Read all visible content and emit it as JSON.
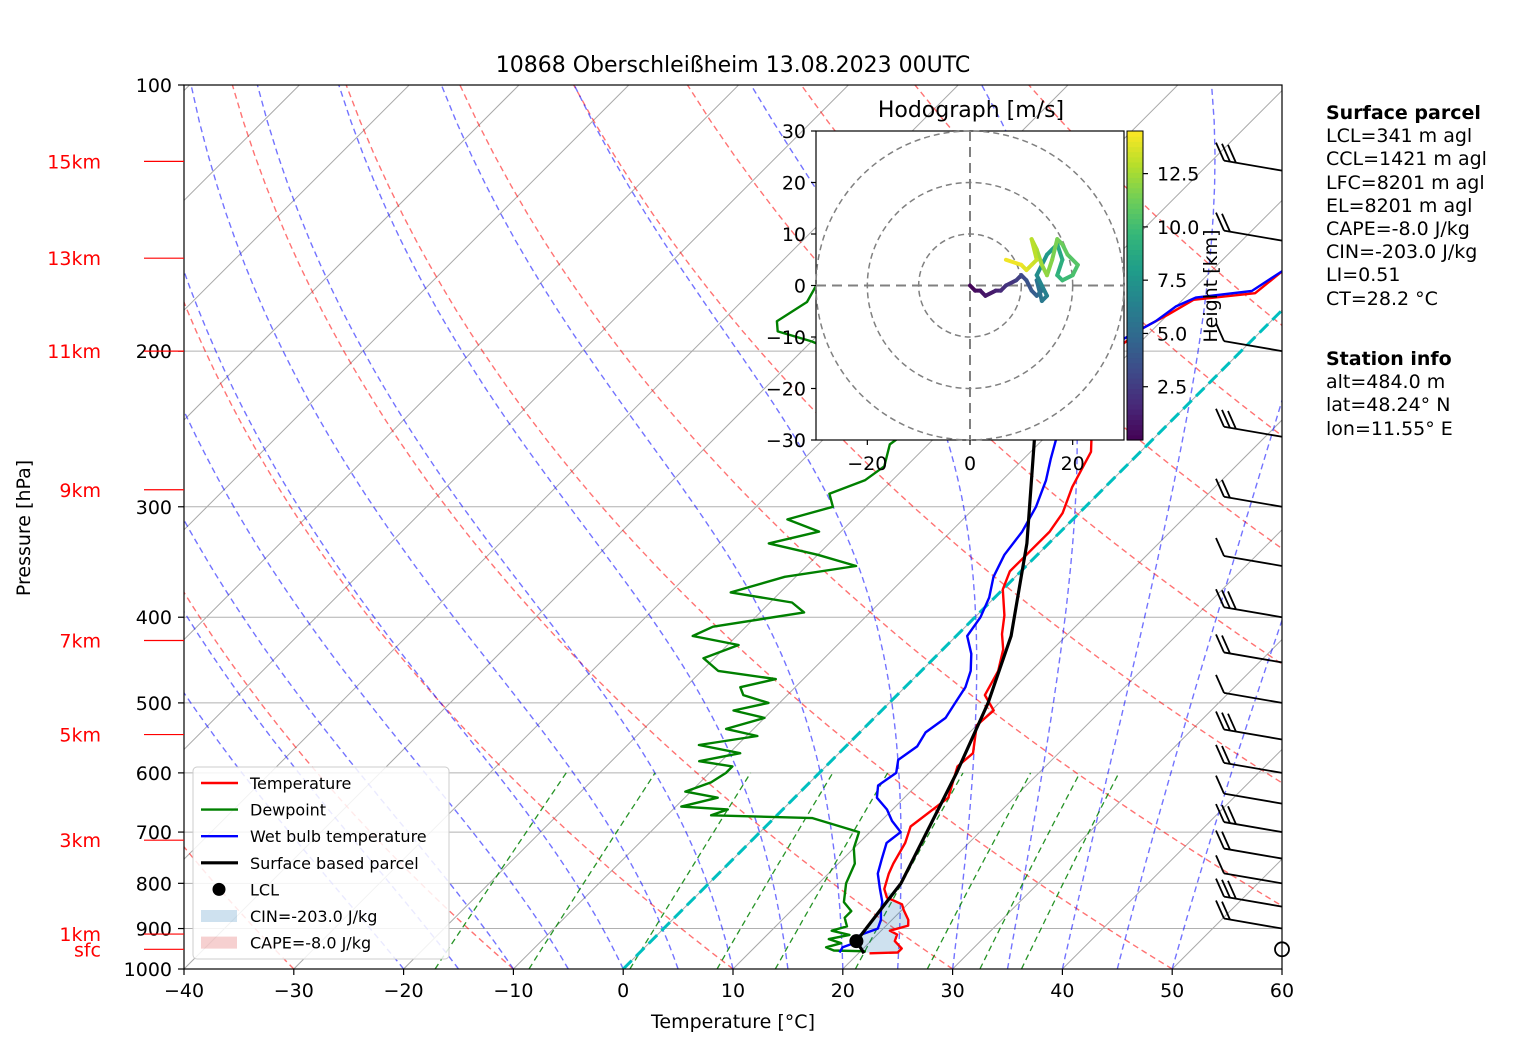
{
  "title": "10868 Oberschleißheim 13.08.2023 00UTC",
  "chart_data": {
    "type": "skew-t log-p",
    "xlabel": "Temperature [°C]",
    "ylabel": "Pressure [hPa]",
    "xlim": [
      -40,
      60
    ],
    "ylim_hpa": [
      1000,
      100
    ],
    "x_ticks": [
      "−40",
      "−30",
      "−20",
      "−10",
      "0",
      "10",
      "20",
      "30",
      "40",
      "50",
      "60"
    ],
    "y_ticks": [
      {
        "p": 100,
        "label": "100"
      },
      {
        "p": 200,
        "label": "200"
      },
      {
        "p": 300,
        "label": "300"
      },
      {
        "p": 400,
        "label": "400"
      },
      {
        "p": 500,
        "label": "500"
      },
      {
        "p": 600,
        "label": "600"
      },
      {
        "p": 700,
        "label": "700"
      },
      {
        "p": 800,
        "label": "800"
      },
      {
        "p": 900,
        "label": "900"
      },
      {
        "p": 1000,
        "label": "1000"
      }
    ],
    "height_labels": [
      {
        "label": "15km",
        "p": 122
      },
      {
        "label": "13km",
        "p": 157
      },
      {
        "label": "11km",
        "p": 200
      },
      {
        "label": "9km",
        "p": 287
      },
      {
        "label": "7km",
        "p": 425
      },
      {
        "label": "5km",
        "p": 543
      },
      {
        "label": "3km",
        "p": 715
      },
      {
        "label": "1km",
        "p": 913
      },
      {
        "label": "sfc",
        "p": 950
      }
    ],
    "series": [
      {
        "name": "Temperature",
        "color": "#ff0000",
        "points": [
          [
            21.0,
            960
          ],
          [
            23.5,
            958
          ],
          [
            23.5,
            948
          ],
          [
            22.2,
            930
          ],
          [
            21.8,
            914
          ],
          [
            20.8,
            905
          ],
          [
            22.0,
            893
          ],
          [
            21.5,
            880
          ],
          [
            20.2,
            858
          ],
          [
            19.5,
            845
          ],
          [
            17.5,
            830
          ],
          [
            16.5,
            812
          ],
          [
            15.5,
            780
          ],
          [
            15.0,
            760
          ],
          [
            14.2,
            720
          ],
          [
            13.2,
            690
          ],
          [
            14.0,
            640
          ],
          [
            12.0,
            590
          ],
          [
            12.2,
            570
          ],
          [
            10.0,
            530
          ],
          [
            10.2,
            510
          ],
          [
            8.0,
            490
          ],
          [
            7.0,
            460
          ],
          [
            5.5,
            435
          ],
          [
            4.0,
            418
          ],
          [
            2.5,
            398
          ],
          [
            0.0,
            372
          ],
          [
            -1.0,
            355
          ],
          [
            -1.0,
            320
          ],
          [
            -1.5,
            305
          ],
          [
            -3.0,
            285
          ],
          [
            -4.5,
            260
          ],
          [
            -6.5,
            245
          ],
          [
            -8.0,
            230
          ],
          [
            -9.5,
            218
          ],
          [
            -11.0,
            205
          ],
          [
            -11.5,
            198
          ],
          [
            -11.0,
            188
          ],
          [
            -10.0,
            182
          ],
          [
            -9.0,
            175
          ],
          [
            -4.0,
            172
          ],
          [
            -3.5,
            162
          ],
          [
            -2.5,
            156
          ],
          [
            -1.5,
            150
          ],
          [
            -1.0,
            144
          ],
          [
            -0.5,
            138
          ],
          [
            -0.5,
            130
          ],
          [
            -0.5,
            127
          ],
          [
            -1.0,
            123
          ],
          [
            -1.0,
            120
          ]
        ]
      },
      {
        "name": "Dewpoint",
        "color": "#008000",
        "points": [
          [
            20.5,
            955
          ],
          [
            17.5,
            953
          ],
          [
            16.5,
            945
          ],
          [
            17.5,
            935
          ],
          [
            16.0,
            925
          ],
          [
            17.5,
            915
          ],
          [
            15.5,
            905
          ],
          [
            16.5,
            895
          ],
          [
            16.0,
            885
          ],
          [
            15.5,
            875
          ],
          [
            15.5,
            860
          ],
          [
            14.0,
            840
          ],
          [
            12.5,
            800
          ],
          [
            11.5,
            760
          ],
          [
            10.0,
            730
          ],
          [
            9.0,
            700
          ],
          [
            3.5,
            675
          ],
          [
            -6.0,
            670
          ],
          [
            -5.0,
            660
          ],
          [
            -9.5,
            655
          ],
          [
            -7.0,
            640
          ],
          [
            -10.5,
            630
          ],
          [
            -9.0,
            615
          ],
          [
            -8.5,
            600
          ],
          [
            -8.5,
            590
          ],
          [
            -12.0,
            582
          ],
          [
            -9.0,
            570
          ],
          [
            -13.5,
            558
          ],
          [
            -9.0,
            545
          ],
          [
            -12.5,
            535
          ],
          [
            -10.0,
            520
          ],
          [
            -13.5,
            510
          ],
          [
            -11.0,
            500
          ],
          [
            -14.0,
            490
          ],
          [
            -15.0,
            480
          ],
          [
            -12.5,
            470
          ],
          [
            -18.5,
            460
          ],
          [
            -21.0,
            445
          ],
          [
            -19.0,
            430
          ],
          [
            -24.0,
            420
          ],
          [
            -23.0,
            410
          ],
          [
            -16.0,
            395
          ],
          [
            -18.0,
            385
          ],
          [
            -24.5,
            375
          ],
          [
            -21.0,
            360
          ],
          [
            -15.5,
            350
          ],
          [
            -20.0,
            340
          ],
          [
            -25.5,
            330
          ],
          [
            -22.0,
            320
          ],
          [
            -26.0,
            310
          ],
          [
            -23.0,
            300
          ],
          [
            -24.5,
            290
          ],
          [
            -22.5,
            280
          ],
          [
            -22.0,
            270
          ],
          [
            -23.5,
            255
          ],
          [
            -23.0,
            245
          ],
          [
            -25.0,
            235
          ],
          [
            -27.0,
            225
          ],
          [
            -29.0,
            215
          ],
          [
            -33.0,
            205
          ],
          [
            -37.0,
            200
          ],
          [
            -40.0,
            195
          ],
          [
            -44.0,
            190
          ],
          [
            -45.0,
            185
          ],
          [
            -44.0,
            176
          ],
          [
            -45.0,
            165
          ],
          [
            -44.5,
            155
          ],
          [
            -43.5,
            148
          ],
          [
            -43.0,
            140
          ],
          [
            -41.0,
            132
          ],
          [
            -39.5,
            128
          ],
          [
            -37.5,
            124
          ],
          [
            -36.0,
            120
          ]
        ]
      },
      {
        "name": "Wet bulb temperature",
        "color": "#0000ff",
        "points": [
          [
            18.2,
            958
          ],
          [
            18.0,
            945
          ],
          [
            19.0,
            930
          ],
          [
            18.5,
            915
          ],
          [
            19.5,
            900
          ],
          [
            19.0,
            880
          ],
          [
            18.2,
            860
          ],
          [
            17.5,
            840
          ],
          [
            16.0,
            810
          ],
          [
            14.5,
            780
          ],
          [
            13.5,
            750
          ],
          [
            12.5,
            720
          ],
          [
            12.8,
            700
          ],
          [
            11.0,
            680
          ],
          [
            9.5,
            660
          ],
          [
            7.5,
            640
          ],
          [
            6.5,
            620
          ],
          [
            7.0,
            600
          ],
          [
            6.0,
            580
          ],
          [
            6.5,
            560
          ],
          [
            6.0,
            540
          ],
          [
            6.5,
            520
          ],
          [
            6.0,
            500
          ],
          [
            5.5,
            480
          ],
          [
            4.5,
            460
          ],
          [
            3.0,
            440
          ],
          [
            1.0,
            420
          ],
          [
            0.5,
            400
          ],
          [
            -0.5,
            380
          ],
          [
            -2.0,
            360
          ],
          [
            -3.0,
            340
          ],
          [
            -3.5,
            320
          ],
          [
            -4.5,
            300
          ],
          [
            -6.0,
            280
          ],
          [
            -7.5,
            265
          ],
          [
            -9.5,
            245
          ],
          [
            -11.0,
            228
          ],
          [
            -11.5,
            212
          ],
          [
            -11.5,
            200
          ],
          [
            -12.0,
            195
          ],
          [
            -10.5,
            185
          ],
          [
            -10.0,
            178
          ],
          [
            -9.0,
            174
          ],
          [
            -4.5,
            171
          ],
          [
            -3.5,
            162
          ],
          [
            -3.0,
            156
          ],
          [
            -2.0,
            150
          ],
          [
            -1.5,
            144
          ],
          [
            -1.0,
            138
          ],
          [
            -1.0,
            130
          ],
          [
            -1.0,
            127
          ],
          [
            -1.5,
            123
          ],
          [
            -1.5,
            120
          ]
        ]
      },
      {
        "name": "Surface based parcel",
        "color": "#000000",
        "points": [
          [
            20.5,
            960
          ],
          [
            18.7,
            930
          ],
          [
            17.5,
            800
          ],
          [
            12.5,
            600
          ],
          [
            9.0,
            500
          ],
          [
            5.0,
            420
          ],
          [
            -2.0,
            330
          ],
          [
            -11.0,
            250
          ],
          [
            -20.0,
            190
          ],
          [
            -30.0,
            140
          ],
          [
            -36.0,
            122
          ]
        ]
      }
    ],
    "lcl": {
      "name": "LCL",
      "t": 18.7,
      "p": 930
    },
    "legend": {
      "placement": "lower-left",
      "entries": [
        "Temperature",
        "Dewpoint",
        "Wet bulb temperature",
        "Surface based parcel",
        "LCL",
        "CIN=-203.0 J/kg",
        "CAPE=-8.0 J/kg"
      ]
    },
    "hodograph": {
      "title": "Hodograph [m/s]",
      "xlim": [
        -30,
        30
      ],
      "ylim": [
        -30,
        30
      ],
      "ticks": [
        "−30",
        "−20",
        "−10",
        "0",
        "10",
        "20",
        "30"
      ],
      "x_ticks": [
        "−20",
        "0",
        "20"
      ],
      "colorbar": {
        "label": "Height [km]",
        "ticks": [
          "2.5",
          "5.0",
          "7.5",
          "10.0",
          "12.5"
        ],
        "min": 0,
        "max": 14.5
      },
      "points": [
        {
          "u": 0,
          "v": 0,
          "h": 0.2
        },
        {
          "u": 1,
          "v": -1,
          "h": 0.5
        },
        {
          "u": 2,
          "v": -1,
          "h": 0.8
        },
        {
          "u": 3,
          "v": -2,
          "h": 1.0
        },
        {
          "u": 5,
          "v": -1,
          "h": 1.4
        },
        {
          "u": 6,
          "v": -1,
          "h": 1.8
        },
        {
          "u": 7,
          "v": 0,
          "h": 2.2
        },
        {
          "u": 9,
          "v": 1,
          "h": 2.7
        },
        {
          "u": 10,
          "v": 2,
          "h": 3.2
        },
        {
          "u": 11,
          "v": 1,
          "h": 3.7
        },
        {
          "u": 12,
          "v": -1,
          "h": 4.2
        },
        {
          "u": 13,
          "v": -2,
          "h": 4.7
        },
        {
          "u": 14,
          "v": -1,
          "h": 5.1
        },
        {
          "u": 13,
          "v": 1,
          "h": 5.5
        },
        {
          "u": 14,
          "v": -3,
          "h": 5.9
        },
        {
          "u": 15,
          "v": -2,
          "h": 6.3
        },
        {
          "u": 14,
          "v": 0,
          "h": 6.7
        },
        {
          "u": 13,
          "v": 2,
          "h": 7.1
        },
        {
          "u": 14,
          "v": 4,
          "h": 7.5
        },
        {
          "u": 15,
          "v": 6,
          "h": 7.9
        },
        {
          "u": 16,
          "v": 7,
          "h": 8.3
        },
        {
          "u": 17,
          "v": 8,
          "h": 8.7
        },
        {
          "u": 18,
          "v": 5,
          "h": 9.1
        },
        {
          "u": 17,
          "v": 2,
          "h": 9.5
        },
        {
          "u": 18,
          "v": 1,
          "h": 9.9
        },
        {
          "u": 20,
          "v": 2,
          "h": 10.3
        },
        {
          "u": 21,
          "v": 4,
          "h": 10.6
        },
        {
          "u": 19,
          "v": 6,
          "h": 10.9
        },
        {
          "u": 18,
          "v": 8,
          "h": 11.2
        },
        {
          "u": 17,
          "v": 9,
          "h": 11.5
        },
        {
          "u": 16,
          "v": 5,
          "h": 11.8
        },
        {
          "u": 15,
          "v": 2,
          "h": 12.1
        },
        {
          "u": 14,
          "v": 4,
          "h": 12.4
        },
        {
          "u": 13,
          "v": 7,
          "h": 12.7
        },
        {
          "u": 12,
          "v": 9,
          "h": 13.0
        },
        {
          "u": 13,
          "v": 5,
          "h": 13.3
        },
        {
          "u": 12,
          "v": 4,
          "h": 13.6
        },
        {
          "u": 11,
          "v": 3,
          "h": 13.9
        },
        {
          "u": 10,
          "v": 4,
          "h": 14.2
        },
        {
          "u": 7,
          "v": 5,
          "h": 14.5
        }
      ]
    },
    "wind_barbs_p": [
      950,
      900,
      850,
      800,
      750,
      700,
      650,
      600,
      550,
      500,
      450,
      400,
      350,
      300,
      250,
      200,
      150,
      125
    ]
  },
  "panel": {
    "surface_title": "Surface parcel",
    "surface_lines": [
      "LCL=341 m agl",
      "CCL=1421 m agl",
      "LFC=8201 m agl",
      "EL=8201 m agl",
      "CAPE=-8.0 J/kg",
      "CIN=-203.0 J/kg",
      "LI=0.51",
      "CT=28.2 °C"
    ],
    "station_title": "Station info",
    "station_lines": [
      "alt=484.0 m",
      "lat=48.24° N",
      "lon=11.55° E"
    ]
  }
}
